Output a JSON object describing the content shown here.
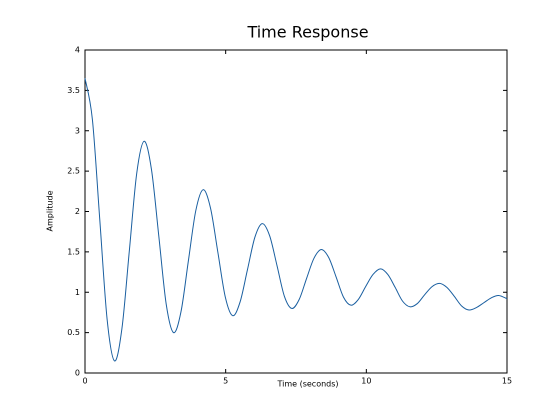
{
  "chart_data": {
    "type": "line",
    "title": "Time Response",
    "x_label": "Time (seconds)",
    "y_label": "Amplitude",
    "x": [
      0,
      0.2625,
      0.525,
      0.7875,
      1.05,
      1.3125,
      1.575,
      1.8375,
      2.1,
      2.3625,
      2.625,
      2.8875,
      3.15,
      3.4125,
      3.675,
      3.9375,
      4.2,
      4.4625,
      4.725,
      4.9875,
      5.25,
      5.5125,
      5.775,
      6.0375,
      6.3,
      6.5625,
      6.825,
      7.0875,
      7.35,
      7.6125,
      7.875,
      8.1375,
      8.4,
      8.6625,
      8.925,
      9.1875,
      9.45,
      9.7125,
      9.975,
      10.2375,
      10.5,
      10.7625,
      11.025,
      11.2875,
      11.55,
      11.8125,
      12.075,
      12.3375,
      12.6,
      12.8625,
      13.125,
      13.3875,
      13.65,
      13.9125,
      14.175,
      14.4375,
      14.7,
      15
    ],
    "values": [
      3.65,
      3.14,
      1.9,
      0.66,
      0.15,
      0.55,
      1.51,
      2.47,
      2.87,
      2.52,
      1.69,
      0.85,
      0.5,
      0.76,
      1.39,
      2.01,
      2.27,
      2.04,
      1.49,
      0.94,
      0.71,
      0.88,
      1.28,
      1.68,
      1.85,
      1.7,
      1.33,
      0.95,
      0.8,
      0.91,
      1.17,
      1.42,
      1.53,
      1.43,
      1.19,
      0.94,
      0.84,
      0.91,
      1.07,
      1.22,
      1.29,
      1.22,
      1.06,
      0.89,
      0.82,
      0.86,
      0.97,
      1.07,
      1.11,
      1.06,
      0.95,
      0.83,
      0.78,
      0.81,
      0.87,
      0.93,
      0.96,
      0.92
    ],
    "color": "#1a5fa0",
    "title_color": "#0000ff",
    "xlim": [
      0,
      15
    ],
    "ylim": [
      0,
      4
    ],
    "xticks": [
      0,
      5,
      10,
      15
    ],
    "yticks": [
      0,
      0.5,
      1,
      1.5,
      2,
      2.5,
      3,
      3.5,
      4
    ],
    "grid": false
  }
}
